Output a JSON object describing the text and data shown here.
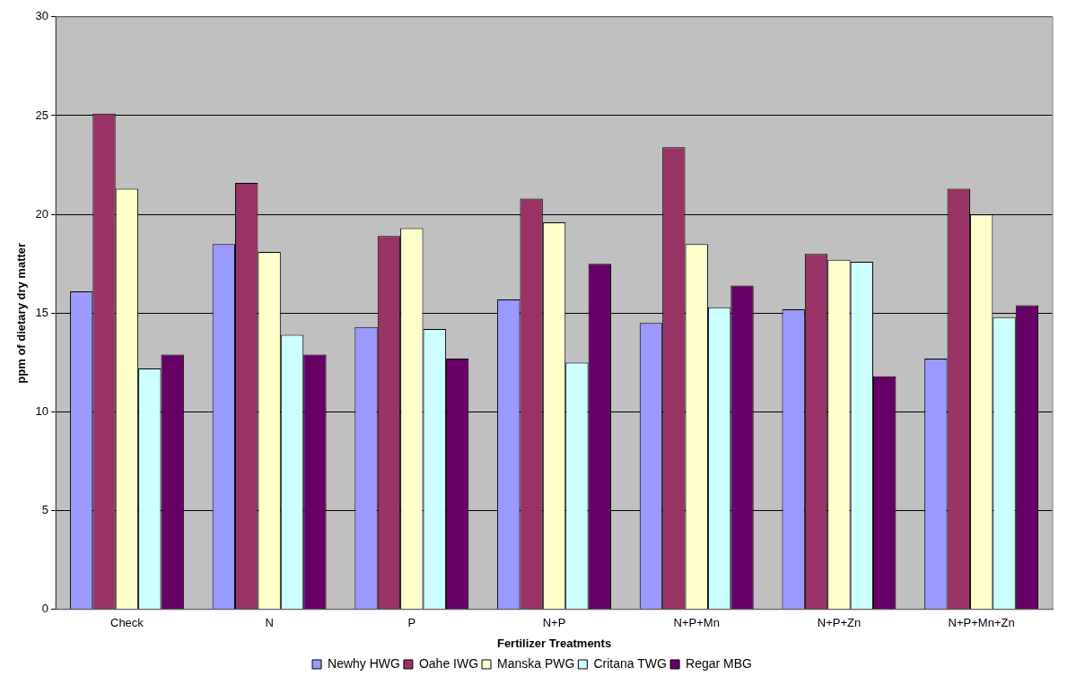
{
  "chart_data": {
    "type": "bar",
    "xlabel": "Fertilizer Treatments",
    "ylabel": "ppm of dietary dry matter",
    "categories": [
      "Check",
      "N",
      "P",
      "N+P",
      "N+P+Mn",
      "N+P+Zn",
      "N+P+Mn+Zn"
    ],
    "series": [
      {
        "name": "Newhy HWG",
        "color": "#9999ff",
        "values": [
          16.1,
          18.5,
          14.3,
          15.7,
          14.5,
          15.2,
          12.7
        ]
      },
      {
        "name": "Oahe IWG",
        "color": "#993366",
        "values": [
          25.1,
          21.6,
          18.9,
          20.8,
          23.4,
          18.0,
          21.3
        ]
      },
      {
        "name": "Manska PWG",
        "color": "#ffffcc",
        "values": [
          21.3,
          18.1,
          19.3,
          19.6,
          18.5,
          17.7,
          20.0
        ]
      },
      {
        "name": "Critana TWG",
        "color": "#ccffff",
        "values": [
          12.2,
          13.9,
          14.2,
          12.5,
          15.3,
          17.6,
          14.8
        ]
      },
      {
        "name": "Regar MBG",
        "color": "#660066",
        "values": [
          12.9,
          12.9,
          12.7,
          17.5,
          16.4,
          11.8,
          15.4
        ]
      }
    ],
    "ylim": [
      0,
      30
    ],
    "yticks": [
      0,
      5,
      10,
      15,
      20,
      25,
      30
    ],
    "grid": "y",
    "legend": "bottom"
  }
}
